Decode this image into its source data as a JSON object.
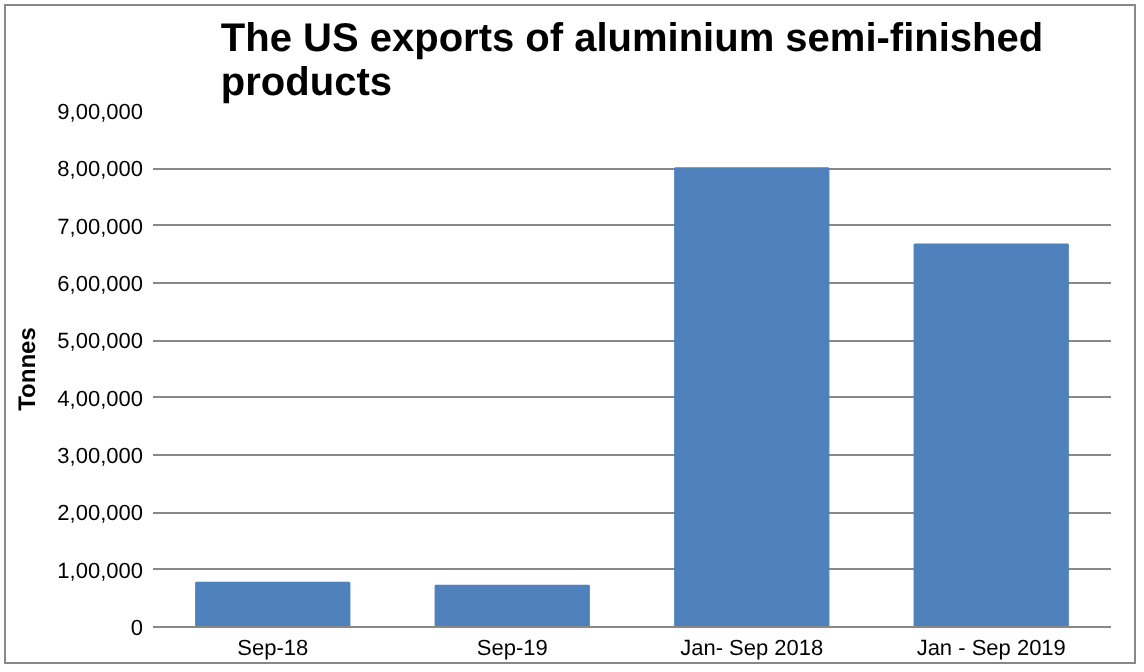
{
  "chart_data": {
    "type": "bar",
    "title": "The US exports of aluminium semi-finished products",
    "ylabel": "Tonnes",
    "categories": [
      "Sep-18",
      "Sep-19",
      "Jan- Sep 2018",
      "Jan - Sep 2019"
    ],
    "values": [
      77000,
      72000,
      800000,
      667000
    ],
    "color": "#4f81bd",
    "ylim": [
      0,
      900000
    ],
    "yticks": [
      0,
      {
        "value": 100000,
        "label": "1,00,000"
      },
      {
        "value": 200000,
        "label": "2,00,000"
      },
      {
        "value": 300000,
        "label": "3,00,000"
      },
      {
        "value": 400000,
        "label": "4,00,000"
      },
      {
        "value": 500000,
        "label": "5,00,000"
      },
      {
        "value": 600000,
        "label": "6,00,000"
      },
      {
        "value": 700000,
        "label": "7,00,000"
      },
      {
        "value": 800000,
        "label": "8,00,000"
      },
      {
        "value": 900000,
        "label": "9,00,000"
      }
    ],
    "grid": "y"
  }
}
